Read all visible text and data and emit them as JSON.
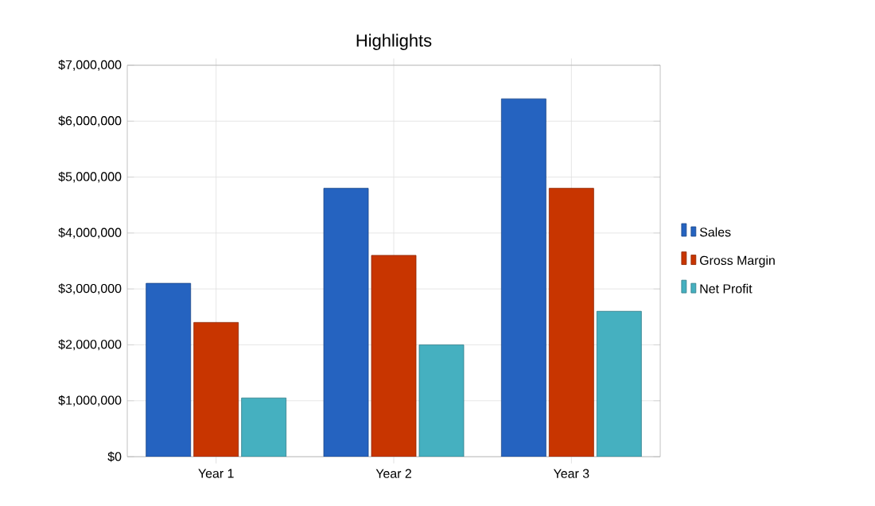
{
  "chart_data": {
    "type": "bar",
    "title": "Highlights",
    "categories": [
      "Year 1",
      "Year 2",
      "Year 3"
    ],
    "series": [
      {
        "name": "Sales",
        "color": "#2563c0",
        "values": [
          3100000,
          4800000,
          6400000
        ]
      },
      {
        "name": "Gross Margin",
        "color": "#c83500",
        "values": [
          2400000,
          3600000,
          4800000
        ]
      },
      {
        "name": "Net Profit",
        "color": "#45b0c0",
        "values": [
          1050000,
          2000000,
          2600000
        ]
      }
    ],
    "ylim": [
      0,
      7000000
    ],
    "yticks": [
      {
        "value": 0,
        "label": "$0"
      },
      {
        "value": 1000000,
        "label": "$1,000,000"
      },
      {
        "value": 2000000,
        "label": "$2,000,000"
      },
      {
        "value": 3000000,
        "label": "$3,000,000"
      },
      {
        "value": 4000000,
        "label": "$4,000,000"
      },
      {
        "value": 5000000,
        "label": "$5,000,000"
      },
      {
        "value": 6000000,
        "label": "$6,000,000"
      },
      {
        "value": 7000000,
        "label": "$7,000,000"
      }
    ],
    "grid": true,
    "legend": "right"
  }
}
